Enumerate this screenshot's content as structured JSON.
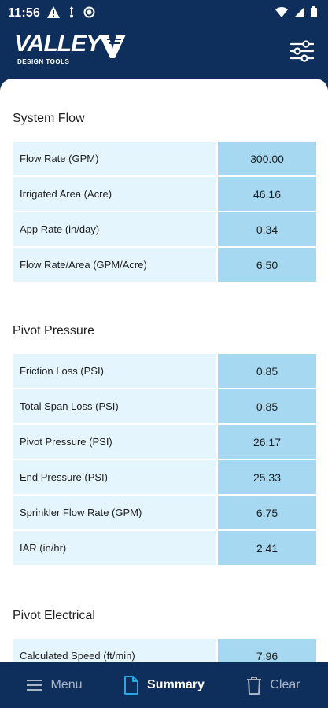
{
  "status": {
    "time": "11:56"
  },
  "header": {
    "brand": "VALLEY",
    "sub": "DESIGN TOOLS",
    "settings_icon": "sliders-icon"
  },
  "sections": [
    {
      "title": "System Flow",
      "rows": [
        {
          "label": "Flow Rate (GPM)",
          "value": "300.00"
        },
        {
          "label": "Irrigated Area (Acre)",
          "value": "46.16"
        },
        {
          "label": "App Rate (in/day)",
          "value": "0.34"
        },
        {
          "label": "Flow Rate/Area (GPM/Acre)",
          "value": "6.50"
        }
      ]
    },
    {
      "title": "Pivot Pressure",
      "rows": [
        {
          "label": "Friction Loss (PSI)",
          "value": "0.85"
        },
        {
          "label": "Total Span Loss (PSI)",
          "value": "0.85"
        },
        {
          "label": "Pivot Pressure (PSI)",
          "value": "26.17"
        },
        {
          "label": "End Pressure (PSI)",
          "value": "25.33"
        },
        {
          "label": "Sprinkler Flow Rate (GPM)",
          "value": "6.75"
        },
        {
          "label": "IAR (in/hr)",
          "value": "2.41"
        }
      ]
    },
    {
      "title": "Pivot Electrical",
      "rows": [
        {
          "label": "Calculated Speed (ft/min)",
          "value": "7.96"
        }
      ]
    }
  ],
  "nav": {
    "items": [
      {
        "label": "Menu",
        "icon": "hamburger-menu-icon"
      },
      {
        "label": "Summary",
        "icon": "document-icon"
      },
      {
        "label": "Clear",
        "icon": "trash-icon"
      }
    ],
    "active_index": 1
  },
  "colors": {
    "header_bg": "#0e2f5c",
    "label_bg": "#e5f5fd",
    "value_bg": "#a7d8f1"
  }
}
